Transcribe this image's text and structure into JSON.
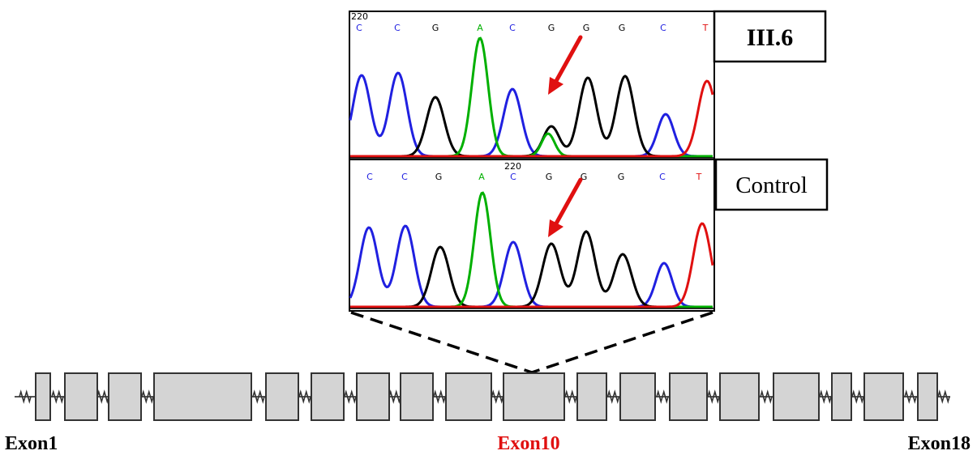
{
  "top_panel": {
    "position_label": "220",
    "sample_label": "III.6",
    "bases": [
      "C",
      "C",
      "G",
      "A",
      "C",
      "G",
      "G",
      "G",
      "C",
      "T"
    ]
  },
  "bottom_panel": {
    "position_label": "220",
    "sample_label": "Control",
    "bases": [
      "C",
      "C",
      "G",
      "A",
      "C",
      "G",
      "G",
      "G",
      "C",
      "T"
    ]
  },
  "gene_model": {
    "left_label": "Exon1",
    "center_label": "Exon10",
    "right_label": "Exon18",
    "exon_count": 18,
    "highlighted_exon": 10
  },
  "colors": {
    "C": "#2020e0",
    "G": "#000000",
    "A": "#00b000",
    "T": "#e01010",
    "arrow": "#e01010",
    "exon_fill": "#d4d4d4",
    "highlight_label": "#e01010"
  }
}
